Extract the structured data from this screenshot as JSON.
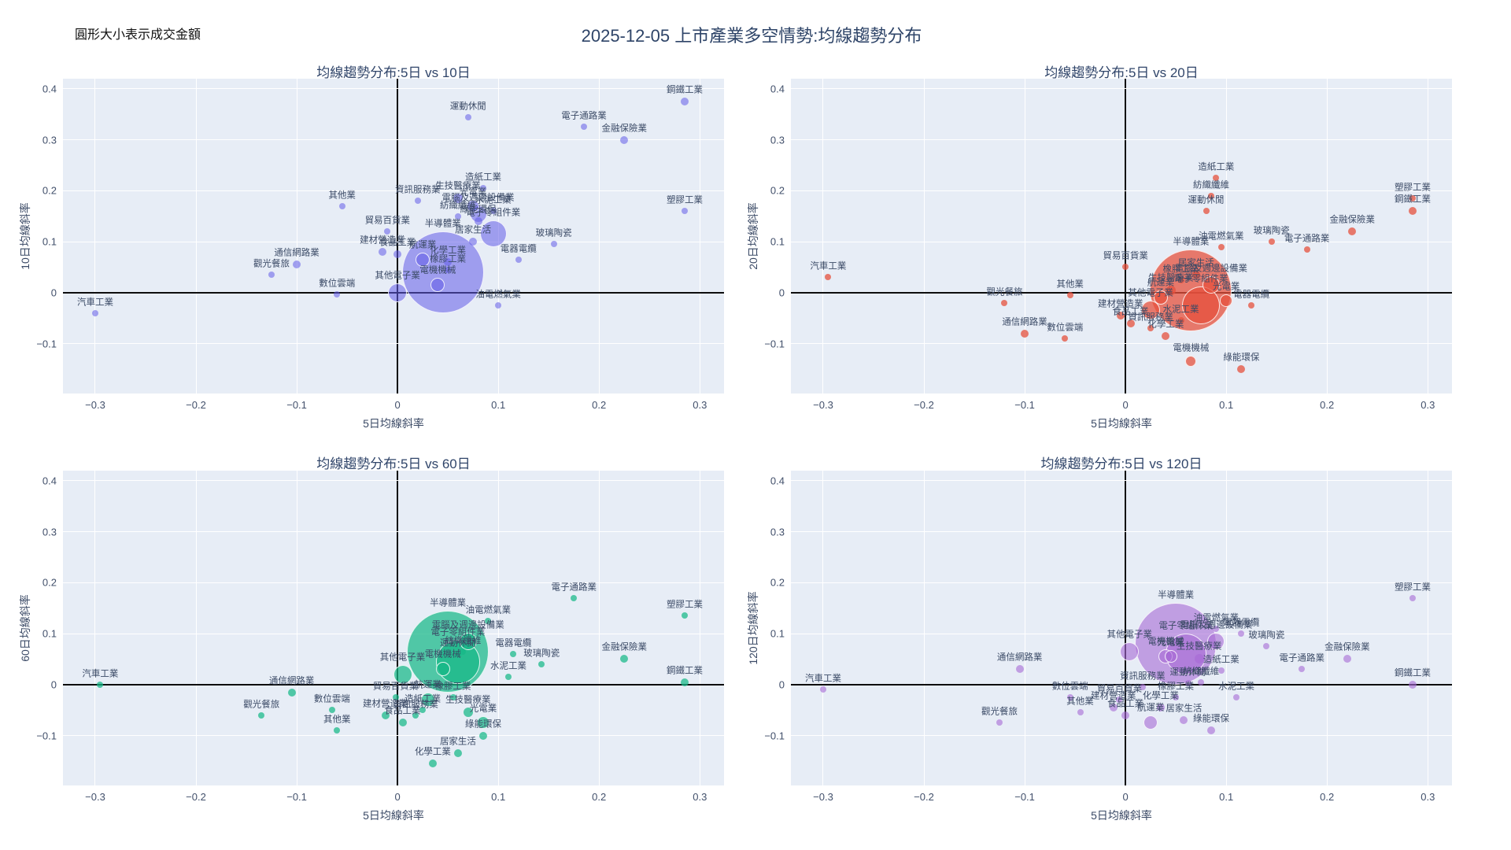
{
  "header": {
    "note": "圓形大小表示成交金額",
    "title": "2025-12-05 上市產業多空情勢:均線趨勢分布"
  },
  "chart_data": {
    "type": "bubble-scatter",
    "grid": "2x2, shared axis style, light blue plot background, white gridlines, black zero lines",
    "xlabel": "5日均線斜率",
    "x_ticks": [
      "-0.3",
      "-0.2",
      "-0.1",
      "0",
      "0.1",
      "0.2",
      "0.3"
    ],
    "y_ticks": [
      "0.4",
      "0.3",
      "0.2",
      "0.1",
      "0",
      "-0.1"
    ],
    "xlim": [
      -0.332,
      0.324
    ],
    "ylim": [
      -0.198,
      0.42
    ],
    "size_meaning": "圓形大小表示成交金額 (bubble radius in px)",
    "point_format": [
      "label",
      "x",
      "y",
      "r"
    ],
    "charts": [
      {
        "title": "均線趨勢分布:5日 vs 10日",
        "ylabel": "10日均線斜率",
        "color": "rgba(99,91,232,0.55)",
        "points": [
          [
            "半導體業",
            0.045,
            0.04,
            52
          ],
          [
            "電子零組件業",
            0.095,
            0.115,
            17
          ],
          [
            "其他電子業",
            0.0,
            0.0,
            12
          ],
          [
            "電腦及週邊設備業",
            0.08,
            0.155,
            11
          ],
          [
            "電機機械",
            0.04,
            0.015,
            9
          ],
          [
            "航運業",
            0.025,
            0.065,
            9
          ],
          [
            "光電業",
            0.075,
            0.17,
            8
          ],
          [
            "金融保險業",
            0.225,
            0.3,
            5
          ],
          [
            "生技醫療業",
            0.06,
            0.185,
            6
          ],
          [
            "通信網路業",
            -0.1,
            0.055,
            5
          ],
          [
            "化學工業",
            0.05,
            0.06,
            5
          ],
          [
            "食品工業",
            0.0,
            0.075,
            5
          ],
          [
            "鋼鐵工業",
            0.285,
            0.375,
            5
          ],
          [
            "建材營造業",
            -0.015,
            0.08,
            5
          ],
          [
            "綠能環保",
            0.08,
            0.14,
            5
          ],
          [
            "居家生活",
            0.075,
            0.1,
            5
          ],
          [
            "玻璃陶瓷",
            0.155,
            0.095,
            4
          ],
          [
            "造紙工業",
            0.085,
            0.205,
            4
          ],
          [
            "紡織纖維",
            0.06,
            0.15,
            4
          ],
          [
            "電器電纜",
            0.12,
            0.065,
            4
          ],
          [
            "水泥工業",
            0.095,
            0.16,
            4
          ],
          [
            "橡膠工業",
            0.05,
            0.045,
            4
          ],
          [
            "汽車工業",
            -0.3,
            -0.04,
            4
          ],
          [
            "電子通路業",
            0.185,
            0.325,
            4
          ],
          [
            "資訊服務業",
            0.02,
            0.18,
            4
          ],
          [
            "油電燃氣業",
            0.1,
            -0.025,
            4
          ],
          [
            "觀光餐旅",
            -0.125,
            0.035,
            4
          ],
          [
            "貿易百貨業",
            -0.01,
            0.12,
            4
          ],
          [
            "數位雲端",
            -0.06,
            -0.003,
            4
          ],
          [
            "運動休閒",
            0.07,
            0.345,
            4
          ],
          [
            "其他業",
            -0.055,
            0.17,
            4
          ],
          [
            "塑膠工業",
            0.285,
            0.16,
            4
          ]
        ]
      },
      {
        "title": "均線趨勢分布:5日 vs 20日",
        "ylabel": "20日均線斜率",
        "color": "rgba(230,80,60,0.75)",
        "points": [
          [
            "半導體業",
            0.065,
            0.005,
            52
          ],
          [
            "電子零組件業",
            0.075,
            -0.025,
            24
          ],
          [
            "其他電子業",
            0.025,
            -0.035,
            12
          ],
          [
            "電腦及週邊設備業",
            0.085,
            0.015,
            11
          ],
          [
            "電機機械",
            0.065,
            -0.135,
            7
          ],
          [
            "航運業",
            0.035,
            -0.01,
            9
          ],
          [
            "光電業",
            0.1,
            -0.015,
            8
          ],
          [
            "金融保險業",
            0.225,
            0.12,
            5
          ],
          [
            "生技醫療業",
            0.045,
            0.005,
            6
          ],
          [
            "通信網路業",
            -0.1,
            -0.08,
            5
          ],
          [
            "化學工業",
            0.04,
            -0.085,
            5
          ],
          [
            "食品工業",
            0.005,
            -0.06,
            5
          ],
          [
            "鋼鐵工業",
            0.285,
            0.16,
            5
          ],
          [
            "建材營造業",
            -0.005,
            -0.045,
            5
          ],
          [
            "綠能環保",
            0.115,
            -0.15,
            5
          ],
          [
            "居家生活",
            0.07,
            0.035,
            5
          ],
          [
            "玻璃陶瓷",
            0.145,
            0.1,
            4
          ],
          [
            "造紙工業",
            0.09,
            0.225,
            4
          ],
          [
            "紡織纖維",
            0.085,
            0.19,
            4
          ],
          [
            "電器電纜",
            0.125,
            -0.025,
            4
          ],
          [
            "水泥工業",
            0.055,
            -0.055,
            4
          ],
          [
            "橡膠工業",
            0.055,
            0.025,
            4
          ],
          [
            "汽車工業",
            -0.295,
            0.03,
            4
          ],
          [
            "電子通路業",
            0.18,
            0.085,
            4
          ],
          [
            "資訊服務業",
            0.025,
            -0.07,
            4
          ],
          [
            "油電燃氣業",
            0.095,
            0.09,
            4
          ],
          [
            "觀光餐旅",
            -0.12,
            -0.02,
            4
          ],
          [
            "貿易百貨業",
            0.0,
            0.05,
            4
          ],
          [
            "數位雲端",
            -0.06,
            -0.09,
            4
          ],
          [
            "運動休閒",
            0.08,
            0.16,
            4
          ],
          [
            "其他業",
            -0.055,
            -0.005,
            4
          ],
          [
            "塑膠工業",
            0.285,
            0.185,
            4
          ]
        ]
      },
      {
        "title": "均線趨勢分布:5日 vs 60日",
        "ylabel": "60日均線斜率",
        "color": "rgba(22,184,135,0.72)",
        "points": [
          [
            "半導體業",
            0.05,
            0.065,
            52
          ],
          [
            "電子零組件業",
            0.06,
            0.045,
            28
          ],
          [
            "其他電子業",
            0.005,
            0.02,
            12
          ],
          [
            "電腦及週邊設備業",
            0.07,
            0.085,
            11
          ],
          [
            "電機機械",
            0.045,
            0.03,
            9
          ],
          [
            "航運業",
            0.03,
            -0.03,
            9
          ],
          [
            "光電業",
            0.085,
            -0.075,
            8
          ],
          [
            "金融保險業",
            0.225,
            0.05,
            5
          ],
          [
            "生技醫療業",
            0.07,
            -0.055,
            6
          ],
          [
            "通信網路業",
            -0.105,
            -0.015,
            5
          ],
          [
            "化學工業",
            0.035,
            -0.155,
            5
          ],
          [
            "食品工業",
            0.005,
            -0.075,
            5
          ],
          [
            "鋼鐵工業",
            0.285,
            0.005,
            5
          ],
          [
            "建材營造業",
            -0.012,
            -0.06,
            5
          ],
          [
            "綠能環保",
            0.085,
            -0.1,
            5
          ],
          [
            "居家生活",
            0.06,
            -0.135,
            5
          ],
          [
            "玻璃陶瓷",
            0.143,
            0.04,
            4
          ],
          [
            "造紙工業",
            0.025,
            -0.05,
            4
          ],
          [
            "紡織纖維",
            0.065,
            0.065,
            4
          ],
          [
            "電器電纜",
            0.115,
            0.06,
            4
          ],
          [
            "水泥工業",
            0.11,
            0.015,
            4
          ],
          [
            "橡膠工業",
            0.055,
            -0.025,
            4
          ],
          [
            "汽車工業",
            -0.295,
            0.0,
            4
          ],
          [
            "電子通路業",
            0.175,
            0.17,
            4
          ],
          [
            "資訊服務業",
            0.018,
            -0.06,
            4
          ],
          [
            "油電燃氣業",
            0.09,
            0.125,
            4
          ],
          [
            "觀光餐旅",
            -0.135,
            -0.06,
            4
          ],
          [
            "貿易百貨業",
            -0.002,
            -0.025,
            4
          ],
          [
            "數位雲端",
            -0.065,
            -0.05,
            4
          ],
          [
            "運動休閒",
            0.06,
            0.06,
            4
          ],
          [
            "其他業",
            -0.06,
            -0.09,
            4
          ],
          [
            "塑膠工業",
            0.285,
            0.135,
            4
          ]
        ]
      },
      {
        "title": "均線趨勢分布:5日 vs 120日",
        "ylabel": "120日均線斜率",
        "color": "rgba(167,105,214,0.6)",
        "points": [
          [
            "半導體業",
            0.05,
            0.08,
            52
          ],
          [
            "電子零組件業",
            0.06,
            0.06,
            26
          ],
          [
            "其他電子業",
            0.004,
            0.065,
            12
          ],
          [
            "電腦及週邊設備業",
            0.09,
            0.085,
            11
          ],
          [
            "電機機械",
            0.04,
            0.055,
            9
          ],
          [
            "航運業",
            0.025,
            -0.075,
            9
          ],
          [
            "光電業",
            0.045,
            0.055,
            8
          ],
          [
            "金融保險業",
            0.22,
            0.05,
            5
          ],
          [
            "生技醫療業",
            0.073,
            0.05,
            6
          ],
          [
            "通信網路業",
            -0.105,
            0.03,
            5
          ],
          [
            "化學工業",
            0.035,
            -0.045,
            5
          ],
          [
            "食品工業",
            0.0,
            -0.06,
            5
          ],
          [
            "鋼鐵工業",
            0.285,
            0.0,
            5
          ],
          [
            "建材營造業",
            -0.012,
            -0.045,
            5
          ],
          [
            "綠能環保",
            0.085,
            -0.09,
            5
          ],
          [
            "居家生活",
            0.058,
            -0.07,
            5
          ],
          [
            "玻璃陶瓷",
            0.14,
            0.075,
            4
          ],
          [
            "造紙工業",
            0.095,
            0.028,
            4
          ],
          [
            "紡織纖維",
            0.075,
            0.005,
            4
          ],
          [
            "電器電纜",
            0.115,
            0.1,
            4
          ],
          [
            "水泥工業",
            0.11,
            -0.025,
            4
          ],
          [
            "橡膠工業",
            0.05,
            -0.025,
            4
          ],
          [
            "汽車工業",
            -0.3,
            -0.01,
            4
          ],
          [
            "電子通路業",
            0.175,
            0.03,
            4
          ],
          [
            "資訊服務業",
            0.017,
            -0.005,
            4
          ],
          [
            "油電燃氣業",
            0.09,
            0.11,
            4
          ],
          [
            "觀光餐旅",
            -0.125,
            -0.075,
            4
          ],
          [
            "貿易百貨業",
            -0.006,
            -0.03,
            4
          ],
          [
            "數位雲端",
            -0.055,
            -0.025,
            4
          ],
          [
            "運動休閒",
            0.062,
            0.003,
            4
          ],
          [
            "其他業",
            -0.045,
            -0.055,
            4
          ],
          [
            "塑膠工業",
            0.285,
            0.17,
            4
          ]
        ]
      }
    ]
  }
}
